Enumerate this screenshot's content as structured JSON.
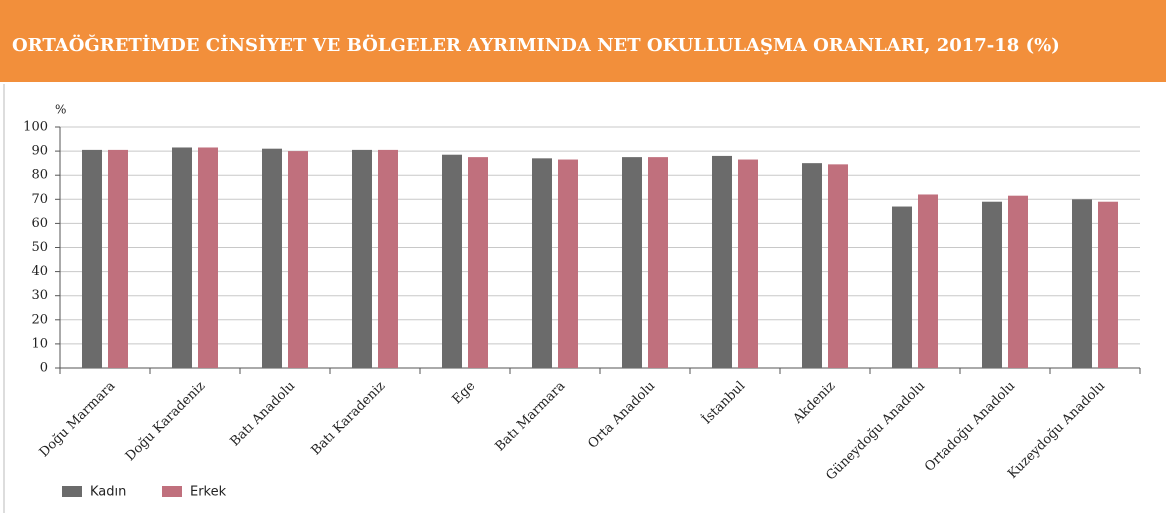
{
  "chart_data": {
    "type": "bar",
    "title": "ORTAÖĞRETİMDE CİNSİYET VE BÖLGELER AYRIMINDA NET OKULLULAŞMA ORANLARI, 2017-18 (%)",
    "y_label": "%",
    "categories": [
      "Doğu Marmara",
      "Doğu Karadeniz",
      "Batı Anadolu",
      "Batı Karadeniz",
      "Ege",
      "Batı Marmara",
      "Orta Anadolu",
      "İstanbul",
      "Akdeniz",
      "Güneydoğu Anadolu",
      "Ortadoğu Anadolu",
      "Kuzeydoğu Anadolu"
    ],
    "series": [
      {
        "name": "Kadın",
        "color": "#6b6b6b",
        "values": [
          90.5,
          91.5,
          91,
          90.5,
          88.5,
          87,
          87.5,
          88,
          85,
          67,
          69,
          70
        ]
      },
      {
        "name": "Erkek",
        "color": "#c0707d",
        "values": [
          90.5,
          91.5,
          90,
          90.5,
          87.5,
          86.5,
          87.5,
          86.5,
          84.5,
          72,
          71.5,
          69
        ]
      }
    ],
    "ylim": [
      0,
      100
    ],
    "yticks": [
      0,
      10,
      20,
      30,
      40,
      50,
      60,
      70,
      80,
      90,
      100
    ],
    "grid": true
  }
}
